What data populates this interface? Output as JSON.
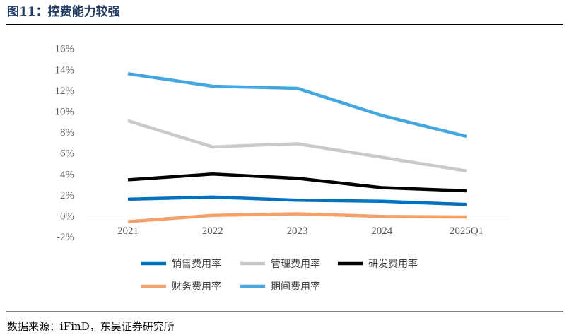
{
  "title": "图11：控费能力较强",
  "source": "数据来源：iFinD，东吴证券研究所",
  "chart_data": {
    "type": "line",
    "title": "",
    "xlabel": "",
    "ylabel": "",
    "categories": [
      "2021",
      "2022",
      "2023",
      "2024",
      "2025Q1"
    ],
    "ylim": [
      -2,
      16
    ],
    "yticks": [
      -2,
      0,
      2,
      4,
      6,
      8,
      10,
      12,
      14,
      16
    ],
    "ytick_labels": [
      "-2%",
      "0%",
      "2%",
      "4%",
      "6%",
      "8%",
      "10%",
      "12%",
      "14%",
      "16%"
    ],
    "grid": false,
    "legend_position": "bottom",
    "series": [
      {
        "name": "销售费用率",
        "color": "#0070c0",
        "values": [
          1.6,
          1.8,
          1.5,
          1.4,
          1.1
        ]
      },
      {
        "name": "管理费用率",
        "color": "#c9c9c9",
        "values": [
          9.1,
          6.6,
          6.9,
          5.6,
          4.3
        ]
      },
      {
        "name": "研发费用率",
        "color": "#000000",
        "values": [
          3.45,
          4.0,
          3.6,
          2.7,
          2.4
        ]
      },
      {
        "name": "财务费用率",
        "color": "#f4a06a",
        "values": [
          -0.55,
          0.05,
          0.2,
          -0.05,
          -0.1
        ]
      },
      {
        "name": "期间费用率",
        "color": "#45a7e0",
        "values": [
          13.6,
          12.4,
          12.2,
          9.6,
          7.6
        ]
      }
    ]
  }
}
